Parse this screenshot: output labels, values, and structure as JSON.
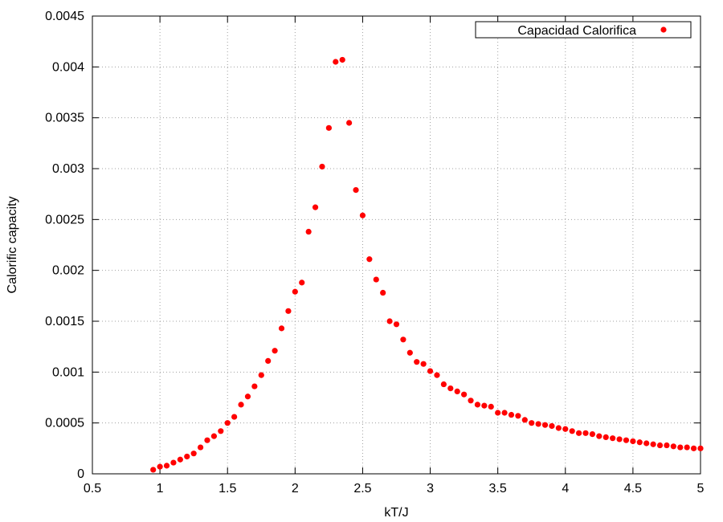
{
  "chart_data": {
    "type": "scatter",
    "title": "",
    "xlabel": "kT/J",
    "ylabel": "Calorific capacity",
    "xlim": [
      0.5,
      5
    ],
    "ylim": [
      0,
      0.0045
    ],
    "xticks": [
      "0.5",
      "1",
      "1.5",
      "2",
      "2.5",
      "3",
      "3.5",
      "4",
      "4.5",
      "5"
    ],
    "yticks": [
      "0",
      "0.0005",
      "0.001",
      "0.0015",
      "0.002",
      "0.0025",
      "0.003",
      "0.0035",
      "0.004",
      "0.0045"
    ],
    "grid": true,
    "grid_style": "dotted",
    "legend": {
      "position": "top-right",
      "box": true
    },
    "series": [
      {
        "name": "Capacidad Calorifica",
        "color": "#ff0000",
        "marker": "circle",
        "points": [
          [
            0.95,
            4e-05
          ],
          [
            1.0,
            7e-05
          ],
          [
            1.05,
            8e-05
          ],
          [
            1.1,
            0.00011
          ],
          [
            1.15,
            0.00014
          ],
          [
            1.2,
            0.00017
          ],
          [
            1.25,
            0.0002
          ],
          [
            1.3,
            0.00026
          ],
          [
            1.35,
            0.00033
          ],
          [
            1.4,
            0.00037
          ],
          [
            1.45,
            0.00042
          ],
          [
            1.5,
            0.0005
          ],
          [
            1.55,
            0.00056
          ],
          [
            1.6,
            0.00068
          ],
          [
            1.65,
            0.00076
          ],
          [
            1.7,
            0.00086
          ],
          [
            1.75,
            0.00097
          ],
          [
            1.8,
            0.00111
          ],
          [
            1.85,
            0.00121
          ],
          [
            1.9,
            0.00143
          ],
          [
            1.95,
            0.0016
          ],
          [
            2.0,
            0.00179
          ],
          [
            2.05,
            0.00188
          ],
          [
            2.1,
            0.00238
          ],
          [
            2.15,
            0.00262
          ],
          [
            2.2,
            0.00302
          ],
          [
            2.25,
            0.0034
          ],
          [
            2.3,
            0.00405
          ],
          [
            2.35,
            0.00407
          ],
          [
            2.4,
            0.00345
          ],
          [
            2.45,
            0.00279
          ],
          [
            2.5,
            0.00254
          ],
          [
            2.55,
            0.00211
          ],
          [
            2.6,
            0.00191
          ],
          [
            2.65,
            0.00178
          ],
          [
            2.7,
            0.0015
          ],
          [
            2.75,
            0.00147
          ],
          [
            2.8,
            0.00132
          ],
          [
            2.85,
            0.00119
          ],
          [
            2.9,
            0.0011
          ],
          [
            2.95,
            0.00108
          ],
          [
            3.0,
            0.00101
          ],
          [
            3.05,
            0.00097
          ],
          [
            3.1,
            0.00088
          ],
          [
            3.15,
            0.00084
          ],
          [
            3.2,
            0.00081
          ],
          [
            3.25,
            0.00078
          ],
          [
            3.3,
            0.00072
          ],
          [
            3.35,
            0.00068
          ],
          [
            3.4,
            0.00067
          ],
          [
            3.45,
            0.00066
          ],
          [
            3.5,
            0.0006
          ],
          [
            3.55,
            0.0006
          ],
          [
            3.6,
            0.00058
          ],
          [
            3.65,
            0.00057
          ],
          [
            3.7,
            0.00053
          ],
          [
            3.75,
            0.0005
          ],
          [
            3.8,
            0.00049
          ],
          [
            3.85,
            0.00048
          ],
          [
            3.9,
            0.00047
          ],
          [
            3.95,
            0.00045
          ],
          [
            4.0,
            0.00044
          ],
          [
            4.05,
            0.00042
          ],
          [
            4.1,
            0.0004
          ],
          [
            4.15,
            0.0004
          ],
          [
            4.2,
            0.00039
          ],
          [
            4.25,
            0.00037
          ],
          [
            4.3,
            0.00036
          ],
          [
            4.35,
            0.00035
          ],
          [
            4.4,
            0.00034
          ],
          [
            4.45,
            0.00033
          ],
          [
            4.5,
            0.00032
          ],
          [
            4.55,
            0.00031
          ],
          [
            4.6,
            0.0003
          ],
          [
            4.65,
            0.00029
          ],
          [
            4.7,
            0.00028
          ],
          [
            4.75,
            0.00028
          ],
          [
            4.8,
            0.00027
          ],
          [
            4.85,
            0.00026
          ],
          [
            4.9,
            0.00026
          ],
          [
            4.95,
            0.00025
          ],
          [
            5.0,
            0.00025
          ]
        ]
      }
    ]
  }
}
